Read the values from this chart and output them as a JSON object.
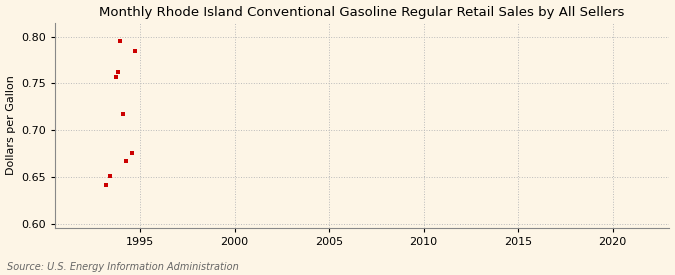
{
  "title": "Monthly Rhode Island Conventional Gasoline Regular Retail Sales by All Sellers",
  "ylabel": "Dollars per Gallon",
  "source": "Source: U.S. Energy Information Administration",
  "background_color": "#fdf5e6",
  "plot_background_color": "#fdf5e6",
  "marker_color": "#cc0000",
  "marker_style": "s",
  "marker_size": 3,
  "xlim": [
    1990.5,
    2023
  ],
  "ylim": [
    0.595,
    0.815
  ],
  "xticks": [
    1995,
    2000,
    2005,
    2010,
    2015,
    2020
  ],
  "yticks": [
    0.6,
    0.65,
    0.7,
    0.75,
    0.8
  ],
  "data_x": [
    1993.2,
    1993.4,
    1993.75,
    1993.85,
    1993.95,
    1994.1,
    1994.25,
    1994.6,
    1994.75
  ],
  "data_y": [
    0.641,
    0.651,
    0.757,
    0.762,
    0.795,
    0.717,
    0.667,
    0.676,
    0.785
  ],
  "grid_color": "#bbbbbb",
  "grid_linestyle": ":",
  "title_fontsize": 9.5,
  "label_fontsize": 8,
  "tick_fontsize": 8,
  "source_fontsize": 7
}
